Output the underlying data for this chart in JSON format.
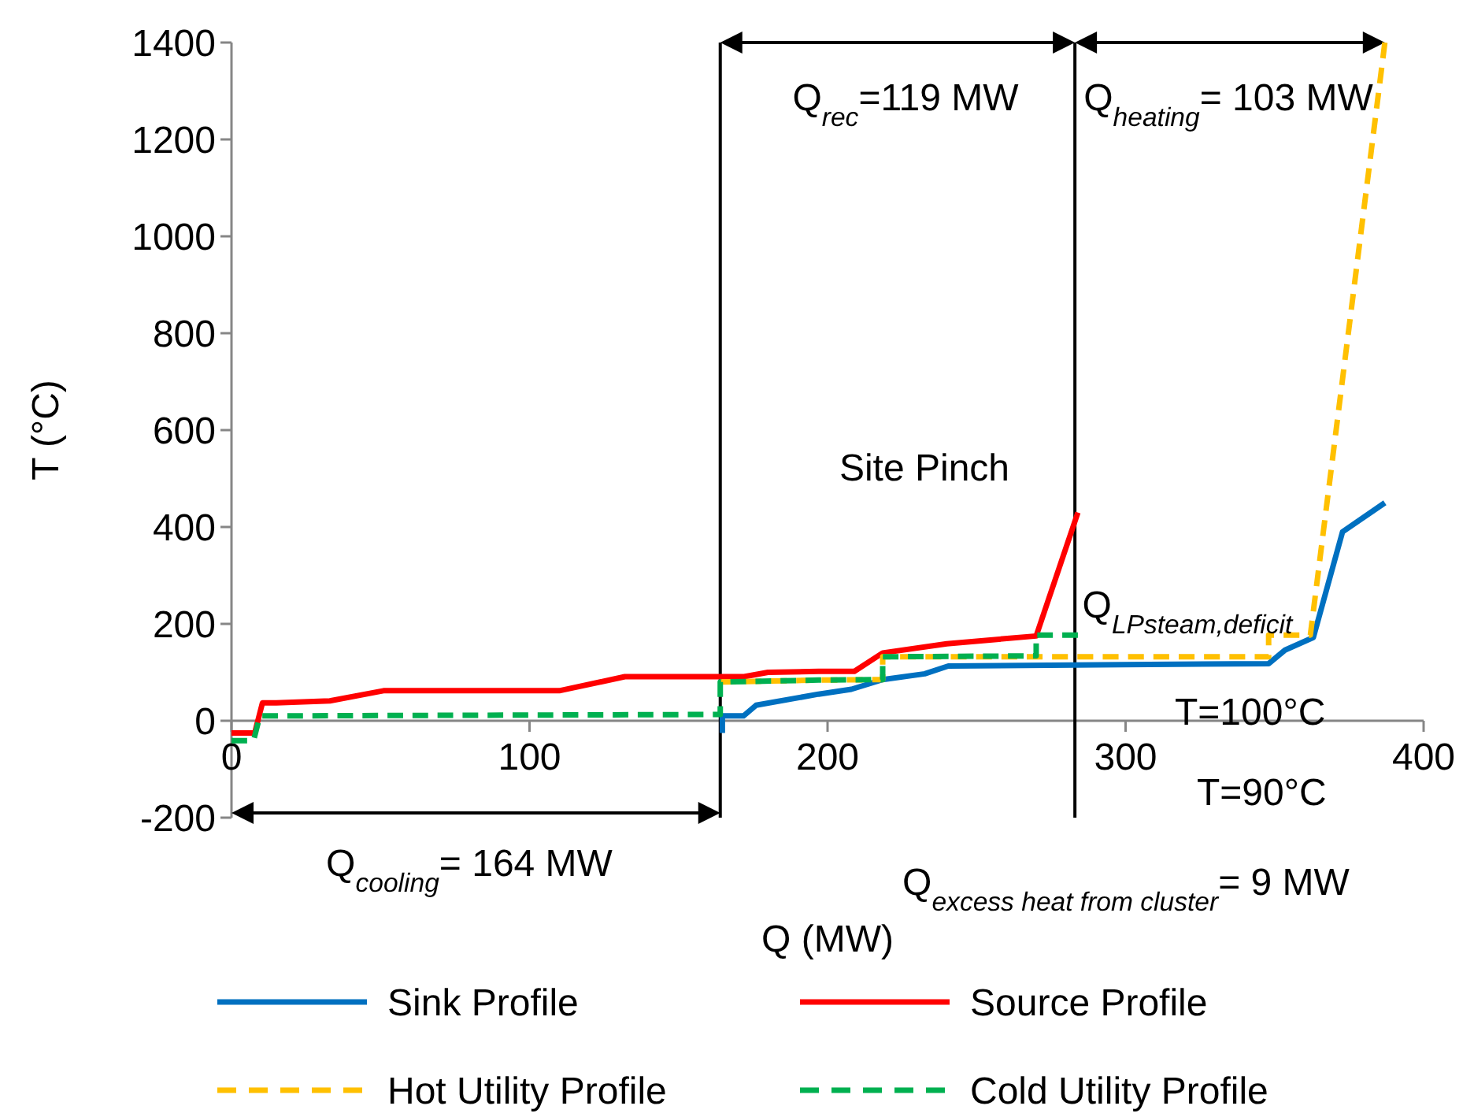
{
  "chart_data": {
    "type": "line",
    "xlabel": "Q (MW)",
    "ylabel": "T (°C)",
    "xlim": [
      0,
      400
    ],
    "ylim": [
      -200,
      1400
    ],
    "xticks": [
      0,
      100,
      200,
      300,
      400
    ],
    "yticks": [
      -200,
      0,
      200,
      400,
      600,
      800,
      1000,
      1200,
      1400
    ],
    "grid": false,
    "legend": "bottom",
    "series": [
      {
        "name": "Sink Profile",
        "color": "#0070c0",
        "line_style": "solid",
        "x": [
          164.7,
          164.7,
          171.8,
          176,
          197,
          208,
          218.5,
          232.6,
          240.5,
          299,
          348,
          353.5,
          363,
          372.8,
          387
        ],
        "values": [
          -25,
          10,
          10,
          32,
          55,
          65,
          85,
          97,
          113,
          116,
          118,
          146,
          172,
          390,
          450
        ]
      },
      {
        "name": "Source Profile",
        "color": "#ff0000",
        "line_style": "solid",
        "x": [
          0,
          7.8,
          10.4,
          15,
          33,
          51,
          110,
          132,
          172,
          180,
          197,
          209,
          218.5,
          240,
          270,
          284
        ],
        "values": [
          -25,
          -25,
          37,
          37,
          41,
          62,
          62,
          91,
          91,
          100,
          102,
          102,
          140,
          159,
          175,
          430
        ]
      },
      {
        "name": "Hot Utility Profile",
        "color": "#ffc000",
        "line_style": "dashed",
        "x": [
          164,
          197,
          218.5,
          218.5,
          348,
          348,
          362,
          387
        ],
        "values": [
          80,
          84,
          85,
          132,
          132,
          177,
          177,
          1400
        ]
      },
      {
        "name": "Cold Utility Profile",
        "color": "#00b050",
        "line_style": "dashed",
        "x": [
          0,
          7.4,
          9.5,
          161,
          164,
          164,
          197,
          218.5,
          218.5,
          270,
          270,
          284
        ],
        "values": [
          -41,
          -41,
          10,
          13,
          13,
          80,
          84,
          85,
          132,
          134,
          177,
          177
        ]
      }
    ],
    "ref_lines": [
      {
        "axis": "x",
        "value": 164,
        "color": "#000000"
      },
      {
        "axis": "x",
        "value": 283,
        "color": "#000000"
      }
    ],
    "annotations": [
      "Q$_{rec}$=119 MW",
      "Q$_{heating}$= 103 MW",
      "Site Pinch",
      "Q$_{LPsteam,deficit}$",
      "T=100°C",
      "T=90°C",
      "Q$_{cooling}$= 164 MW",
      "Q$_{excess heat from cluster}$= 9 MW"
    ]
  }
}
